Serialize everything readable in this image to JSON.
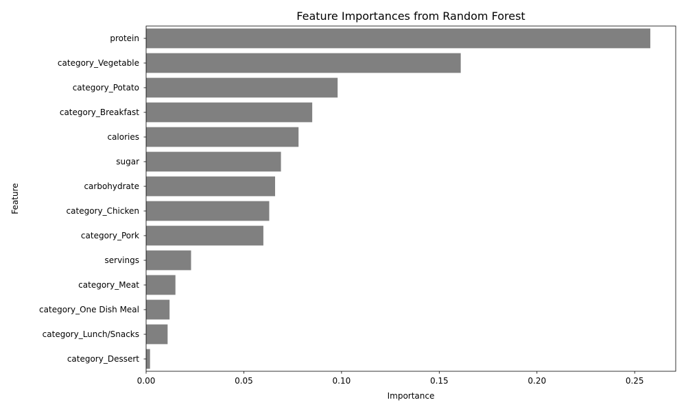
{
  "chart_data": {
    "type": "bar",
    "orientation": "horizontal",
    "title": "Feature Importances from Random Forest",
    "xlabel": "Importance",
    "ylabel": "Feature",
    "xlim": [
      0,
      0.271
    ],
    "x_ticks": [
      0.0,
      0.05,
      0.1,
      0.15,
      0.2,
      0.25
    ],
    "x_tick_labels": [
      "0.00",
      "0.05",
      "0.10",
      "0.15",
      "0.20",
      "0.25"
    ],
    "grid": false,
    "bar_color": "#808080",
    "categories": [
      "protein",
      "category_Vegetable",
      "category_Potato",
      "category_Breakfast",
      "calories",
      "sugar",
      "carbohydrate",
      "category_Chicken",
      "category_Pork",
      "servings",
      "category_Meat",
      "category_One Dish Meal",
      "category_Lunch/Snacks",
      "category_Dessert"
    ],
    "values": [
      0.258,
      0.161,
      0.098,
      0.085,
      0.078,
      0.069,
      0.066,
      0.063,
      0.06,
      0.023,
      0.015,
      0.012,
      0.011,
      0.002
    ]
  }
}
